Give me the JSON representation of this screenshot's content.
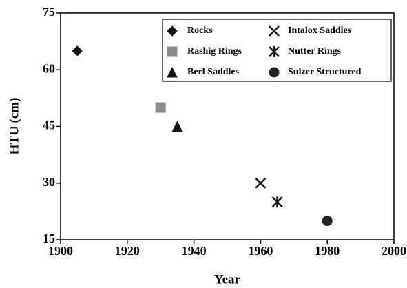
{
  "chart_data": {
    "type": "scatter",
    "xlabel": "Year",
    "ylabel": "HTU (cm)",
    "xlim": [
      1900,
      2000
    ],
    "xticks": [
      1900,
      1920,
      1940,
      1960,
      1980,
      2000
    ],
    "ylim": [
      15,
      75
    ],
    "yticks": [
      15,
      30,
      45,
      60,
      75
    ],
    "legend": "upper right",
    "series": [
      {
        "name": "Rocks",
        "color": "#111111",
        "marker": "diamond",
        "x": [
          1905
        ],
        "values": [
          65
        ]
      },
      {
        "name": "Rashig Rings",
        "color": "#8c8c8c",
        "marker": "square",
        "x": [
          1930
        ],
        "values": [
          50
        ]
      },
      {
        "name": "Berl Saddles",
        "color": "#111111",
        "marker": "triangle",
        "x": [
          1935
        ],
        "values": [
          45
        ]
      },
      {
        "name": "Intalox Saddles",
        "color": "#111111",
        "marker": "x",
        "x": [
          1960
        ],
        "values": [
          30
        ]
      },
      {
        "name": "Nutter Rings",
        "color": "#111111",
        "marker": "asterisk",
        "x": [
          1965
        ],
        "values": [
          25
        ]
      },
      {
        "name": "Sulzer Structured",
        "color": "#222222",
        "marker": "circle",
        "x": [
          1980
        ],
        "values": [
          20
        ]
      }
    ]
  }
}
